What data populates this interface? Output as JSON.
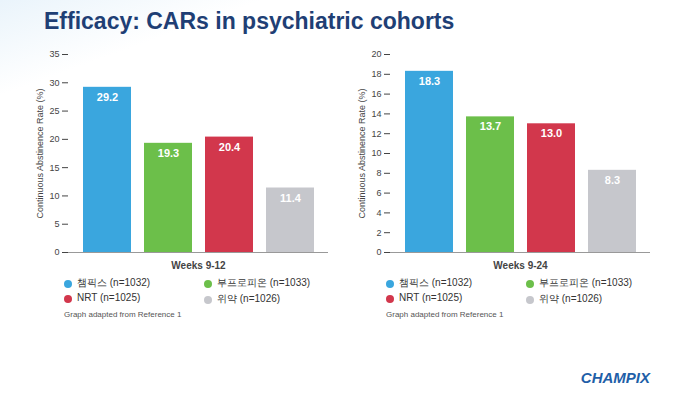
{
  "title": "Efficacy: CARs in psychiatric cohorts",
  "footer": "CHAMPIX",
  "chart_data": [
    {
      "type": "bar",
      "categories": [
        "Weeks 9-12"
      ],
      "y_label": "Continuous Abstinence Rate (%)",
      "ylim": [
        0,
        35
      ],
      "yticks": [
        0,
        5,
        10,
        15,
        20,
        25,
        30,
        35
      ],
      "grid": false,
      "legend": "bottom",
      "data_labels": true,
      "caption": "Graph adapted from Reference 1",
      "series": [
        {
          "name": "챔픽스 (n=1032)",
          "color": "#3aa6de",
          "values": [
            29.2
          ]
        },
        {
          "name": "부프로피온 (n=1033)",
          "color": "#6cbf4a",
          "values": [
            19.3
          ]
        },
        {
          "name": "NRT (n=1025)",
          "color": "#d2374c",
          "values": [
            20.4
          ]
        },
        {
          "name": "위약 (n=1026)",
          "color": "#c6c7cc",
          "values": [
            11.4
          ]
        }
      ]
    },
    {
      "type": "bar",
      "categories": [
        "Weeks 9-24"
      ],
      "y_label": "Continuous Abstinence Rate (%)",
      "ylim": [
        0,
        20
      ],
      "yticks": [
        0,
        2,
        4,
        6,
        8,
        10,
        12,
        14,
        16,
        18,
        20
      ],
      "grid": false,
      "legend": "bottom",
      "data_labels": true,
      "caption": "Graph adapted from Reference 1",
      "series": [
        {
          "name": "챔픽스 (n=1032)",
          "color": "#3aa6de",
          "values": [
            18.3
          ]
        },
        {
          "name": "부프로피온 (n=1033)",
          "color": "#6cbf4a",
          "values": [
            13.7
          ]
        },
        {
          "name": "NRT (n=1025)",
          "color": "#d2374c",
          "values": [
            13
          ],
          "value_labels": [
            "13.0"
          ]
        },
        {
          "name": "위약 (n=1026)",
          "color": "#c6c7cc",
          "values": [
            8.3
          ]
        }
      ]
    }
  ]
}
